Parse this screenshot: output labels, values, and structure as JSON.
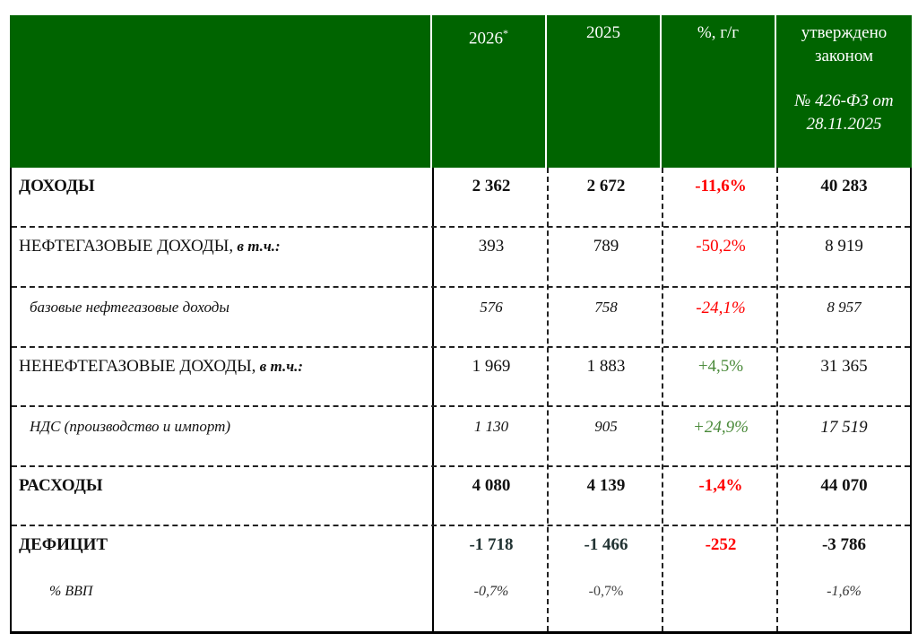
{
  "header": {
    "col_2026": "2026",
    "col_2026_mark": "*",
    "col_2025": "2025",
    "col_pct": "%, г/г",
    "col_law_line1": "утверждено",
    "col_law_line2": "законом",
    "col_law_line3": "№ 426-ФЗ от",
    "col_law_line4": "28.11.2025"
  },
  "rows": [
    {
      "label": "ДОХОДЫ",
      "suffix": "",
      "v2026": "2 362",
      "v2025": "2 672",
      "pct": "-11,6%",
      "law": "40 283"
    },
    {
      "label": "НЕФТЕГАЗОВЫЕ ДОХОДЫ,",
      "suffix": " в т.ч.:",
      "v2026": "393",
      "v2025": "789",
      "pct": "-50,2%",
      "law": "8 919"
    },
    {
      "label": "базовые нефтегазовые доходы",
      "suffix": "",
      "v2026": "576",
      "v2025": "758",
      "pct": "-24,1%",
      "law": "8 957"
    },
    {
      "label": "НЕНЕФТЕГАЗОВЫЕ ДОХОДЫ,",
      "suffix": " в т.ч.:",
      "v2026": "1 969",
      "v2025": "1 883",
      "pct": "+4,5%",
      "law": "31 365"
    },
    {
      "label": "НДС (производство и импорт)",
      "suffix": "",
      "v2026": "1 130",
      "v2025": "905",
      "pct": "+24,9%",
      "law": "17 519"
    },
    {
      "label": "РАСХОДЫ",
      "suffix": "",
      "v2026": "4 080",
      "v2025": "4 139",
      "pct": "-1,4%",
      "law": "44 070"
    },
    {
      "label": "ДЕФИЦИТ",
      "suffix": "",
      "v2026": "-1 718",
      "v2025": "-1 466",
      "pct": "-252",
      "law": "-3 786"
    }
  ],
  "gdp": {
    "label": "% ВВП",
    "v2026": "-0,7%",
    "v2025": "-0,7%",
    "law": "-1,6%"
  },
  "colors": {
    "header_bg": "#006400",
    "negative": "#ff0000",
    "positive": "#4a8a3a"
  }
}
